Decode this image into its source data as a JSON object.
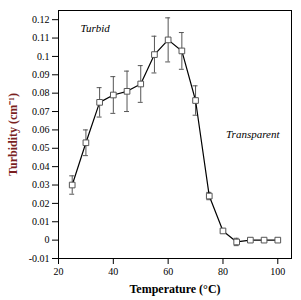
{
  "chart_data": {
    "type": "line",
    "x_label": "Temperature (°C)",
    "y_label": "Turbidity (cm⁻¹)",
    "annotations": [
      "Turbid",
      "Transparent"
    ],
    "x": [
      25,
      30,
      35,
      40,
      45,
      50,
      55,
      60,
      65,
      70,
      75,
      80,
      85,
      90,
      95,
      100
    ],
    "series": [
      {
        "values": [
          0.03,
          0.053,
          0.075,
          0.079,
          0.081,
          0.085,
          0.101,
          0.109,
          0.103,
          0.076,
          0.024,
          0.005,
          -0.001,
          0.0,
          0.0,
          0.0
        ],
        "errors": [
          0.005,
          0.007,
          0.008,
          0.01,
          0.011,
          0.01,
          0.01,
          0.012,
          0.01,
          0.008,
          0.002,
          0.001,
          0.002,
          0.001,
          0.0,
          0.0
        ],
        "color": "#000000",
        "marker": "square",
        "line_style": "solid"
      }
    ],
    "xlim": [
      20,
      105
    ],
    "xticks": [
      20,
      40,
      60,
      80,
      100
    ],
    "ylim": [
      -0.01,
      0.125
    ],
    "yticks": [
      -0.01,
      0,
      0.01,
      0.02,
      0.03,
      0.04,
      0.05,
      0.06,
      0.07,
      0.08,
      0.09,
      0.1,
      0.11,
      0.12
    ],
    "grid": false
  }
}
